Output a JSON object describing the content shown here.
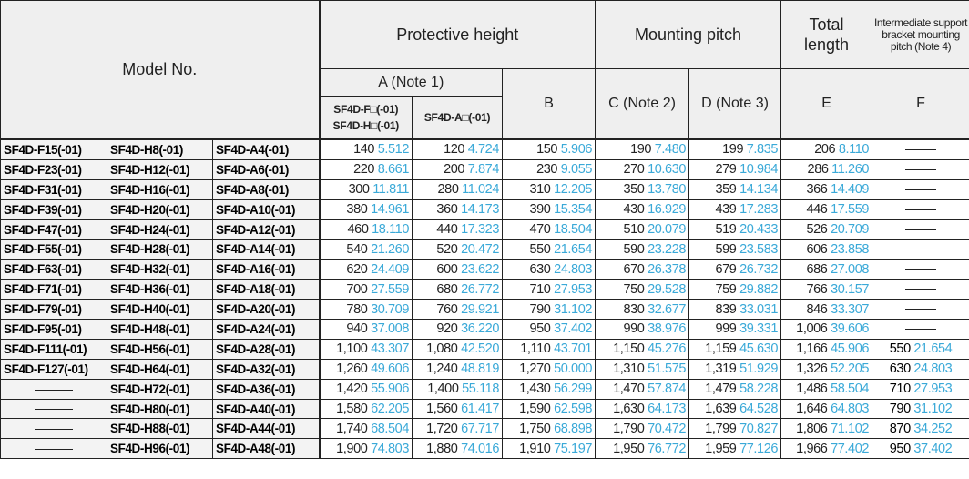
{
  "header": {
    "model_no": "Model No.",
    "protective_height": "Protective height",
    "mounting_pitch": "Mounting pitch",
    "total_length": "Total length",
    "intermediate": "Intermediate support bracket mounting pitch (Note 4)",
    "a_note": "A (Note 1)",
    "a_fh_line1": "SF4D-F□(-01)",
    "a_fh_line2": "SF4D-H□(-01)",
    "a_a": "SF4D-A□(-01)",
    "b": "B",
    "c": "C (Note 2)",
    "d": "D (Note 3)",
    "e": "E",
    "f": "F"
  },
  "rows": [
    {
      "f": "SF4D-F15(-01)",
      "h": "SF4D-H8(-01)",
      "a": "SF4D-A4(-01)",
      "v": [
        [
          "140",
          "5.512"
        ],
        [
          "120",
          "4.724"
        ],
        [
          "150",
          "5.906"
        ],
        [
          "190",
          "7.480"
        ],
        [
          "199",
          "7.835"
        ],
        [
          "206",
          "8.110"
        ],
        null
      ]
    },
    {
      "f": "SF4D-F23(-01)",
      "h": "SF4D-H12(-01)",
      "a": "SF4D-A6(-01)",
      "v": [
        [
          "220",
          "8.661"
        ],
        [
          "200",
          "7.874"
        ],
        [
          "230",
          "9.055"
        ],
        [
          "270",
          "10.630"
        ],
        [
          "279",
          "10.984"
        ],
        [
          "286",
          "11.260"
        ],
        null
      ]
    },
    {
      "f": "SF4D-F31(-01)",
      "h": "SF4D-H16(-01)",
      "a": "SF4D-A8(-01)",
      "v": [
        [
          "300",
          "11.811"
        ],
        [
          "280",
          "11.024"
        ],
        [
          "310",
          "12.205"
        ],
        [
          "350",
          "13.780"
        ],
        [
          "359",
          "14.134"
        ],
        [
          "366",
          "14.409"
        ],
        null
      ]
    },
    {
      "f": "SF4D-F39(-01)",
      "h": "SF4D-H20(-01)",
      "a": "SF4D-A10(-01)",
      "v": [
        [
          "380",
          "14.961"
        ],
        [
          "360",
          "14.173"
        ],
        [
          "390",
          "15.354"
        ],
        [
          "430",
          "16.929"
        ],
        [
          "439",
          "17.283"
        ],
        [
          "446",
          "17.559"
        ],
        null
      ]
    },
    {
      "f": "SF4D-F47(-01)",
      "h": "SF4D-H24(-01)",
      "a": "SF4D-A12(-01)",
      "v": [
        [
          "460",
          "18.110"
        ],
        [
          "440",
          "17.323"
        ],
        [
          "470",
          "18.504"
        ],
        [
          "510",
          "20.079"
        ],
        [
          "519",
          "20.433"
        ],
        [
          "526",
          "20.709"
        ],
        null
      ]
    },
    {
      "f": "SF4D-F55(-01)",
      "h": "SF4D-H28(-01)",
      "a": "SF4D-A14(-01)",
      "v": [
        [
          "540",
          "21.260"
        ],
        [
          "520",
          "20.472"
        ],
        [
          "550",
          "21.654"
        ],
        [
          "590",
          "23.228"
        ],
        [
          "599",
          "23.583"
        ],
        [
          "606",
          "23.858"
        ],
        null
      ]
    },
    {
      "f": "SF4D-F63(-01)",
      "h": "SF4D-H32(-01)",
      "a": "SF4D-A16(-01)",
      "v": [
        [
          "620",
          "24.409"
        ],
        [
          "600",
          "23.622"
        ],
        [
          "630",
          "24.803"
        ],
        [
          "670",
          "26.378"
        ],
        [
          "679",
          "26.732"
        ],
        [
          "686",
          "27.008"
        ],
        null
      ]
    },
    {
      "f": "SF4D-F71(-01)",
      "h": "SF4D-H36(-01)",
      "a": "SF4D-A18(-01)",
      "v": [
        [
          "700",
          "27.559"
        ],
        [
          "680",
          "26.772"
        ],
        [
          "710",
          "27.953"
        ],
        [
          "750",
          "29.528"
        ],
        [
          "759",
          "29.882"
        ],
        [
          "766",
          "30.157"
        ],
        null
      ]
    },
    {
      "f": "SF4D-F79(-01)",
      "h": "SF4D-H40(-01)",
      "a": "SF4D-A20(-01)",
      "v": [
        [
          "780",
          "30.709"
        ],
        [
          "760",
          "29.921"
        ],
        [
          "790",
          "31.102"
        ],
        [
          "830",
          "32.677"
        ],
        [
          "839",
          "33.031"
        ],
        [
          "846",
          "33.307"
        ],
        null
      ]
    },
    {
      "f": "SF4D-F95(-01)",
      "h": "SF4D-H48(-01)",
      "a": "SF4D-A24(-01)",
      "v": [
        [
          "940",
          "37.008"
        ],
        [
          "920",
          "36.220"
        ],
        [
          "950",
          "37.402"
        ],
        [
          "990",
          "38.976"
        ],
        [
          "999",
          "39.331"
        ],
        [
          "1,006",
          "39.606"
        ],
        null
      ]
    },
    {
      "f": "SF4D-F111(-01)",
      "h": "SF4D-H56(-01)",
      "a": "SF4D-A28(-01)",
      "v": [
        [
          "1,100",
          "43.307"
        ],
        [
          "1,080",
          "42.520"
        ],
        [
          "1,110",
          "43.701"
        ],
        [
          "1,150",
          "45.276"
        ],
        [
          "1,159",
          "45.630"
        ],
        [
          "1,166",
          "45.906"
        ],
        [
          "550",
          "21.654"
        ]
      ]
    },
    {
      "f": "SF4D-F127(-01)",
      "h": "SF4D-H64(-01)",
      "a": "SF4D-A32(-01)",
      "v": [
        [
          "1,260",
          "49.606"
        ],
        [
          "1,240",
          "48.819"
        ],
        [
          "1,270",
          "50.000"
        ],
        [
          "1,310",
          "51.575"
        ],
        [
          "1,319",
          "51.929"
        ],
        [
          "1,326",
          "52.205"
        ],
        [
          "630",
          "24.803"
        ]
      ]
    },
    {
      "f": null,
      "h": "SF4D-H72(-01)",
      "a": "SF4D-A36(-01)",
      "v": [
        [
          "1,420",
          "55.906"
        ],
        [
          "1,400",
          "55.118"
        ],
        [
          "1,430",
          "56.299"
        ],
        [
          "1,470",
          "57.874"
        ],
        [
          "1,479",
          "58.228"
        ],
        [
          "1,486",
          "58.504"
        ],
        [
          "710",
          "27.953"
        ]
      ]
    },
    {
      "f": null,
      "h": "SF4D-H80(-01)",
      "a": "SF4D-A40(-01)",
      "v": [
        [
          "1,580",
          "62.205"
        ],
        [
          "1,560",
          "61.417"
        ],
        [
          "1,590",
          "62.598"
        ],
        [
          "1,630",
          "64.173"
        ],
        [
          "1,639",
          "64.528"
        ],
        [
          "1,646",
          "64.803"
        ],
        [
          "790",
          "31.102"
        ]
      ]
    },
    {
      "f": null,
      "h": "SF4D-H88(-01)",
      "a": "SF4D-A44(-01)",
      "v": [
        [
          "1,740",
          "68.504"
        ],
        [
          "1,720",
          "67.717"
        ],
        [
          "1,750",
          "68.898"
        ],
        [
          "1,790",
          "70.472"
        ],
        [
          "1,799",
          "70.827"
        ],
        [
          "1,806",
          "71.102"
        ],
        [
          "870",
          "34.252"
        ]
      ]
    },
    {
      "f": null,
      "h": "SF4D-H96(-01)",
      "a": "SF4D-A48(-01)",
      "v": [
        [
          "1,900",
          "74.803"
        ],
        [
          "1,880",
          "74.016"
        ],
        [
          "1,910",
          "75.197"
        ],
        [
          "1,950",
          "76.772"
        ],
        [
          "1,959",
          "77.126"
        ],
        [
          "1,966",
          "77.402"
        ],
        [
          "950",
          "37.402"
        ]
      ]
    }
  ],
  "colors": {
    "inch_value": "#3aa9d8",
    "header_bg": "#efefef",
    "border": "#222222"
  }
}
